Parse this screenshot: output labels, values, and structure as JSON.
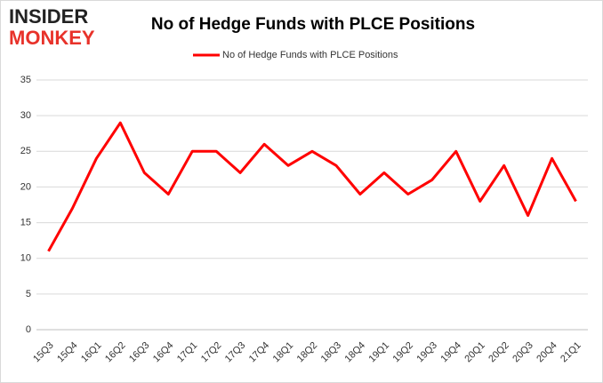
{
  "logo": {
    "line1": "INSIDER",
    "line2": "MONKEY"
  },
  "chart_data": {
    "type": "line",
    "title": "No of Hedge Funds with PLCE Positions",
    "categories": [
      "15Q3",
      "15Q4",
      "16Q1",
      "16Q2",
      "16Q3",
      "16Q4",
      "17Q1",
      "17Q2",
      "17Q3",
      "17Q4",
      "18Q1",
      "18Q2",
      "18Q3",
      "18Q4",
      "19Q1",
      "19Q2",
      "19Q3",
      "19Q4",
      "20Q1",
      "20Q2",
      "20Q3",
      "20Q4",
      "21Q1"
    ],
    "series": [
      {
        "name": "No of Hedge Funds with PLCE Positions",
        "color": "#ff0000",
        "values": [
          11,
          17,
          24,
          29,
          22,
          19,
          25,
          25,
          22,
          26,
          23,
          25,
          23,
          19,
          22,
          19,
          21,
          25,
          18,
          23,
          16,
          24,
          18
        ]
      }
    ],
    "ylim": [
      0,
      35
    ],
    "yticks": [
      0,
      5,
      10,
      15,
      20,
      25,
      30,
      35
    ],
    "grid": true,
    "legend": "top"
  }
}
